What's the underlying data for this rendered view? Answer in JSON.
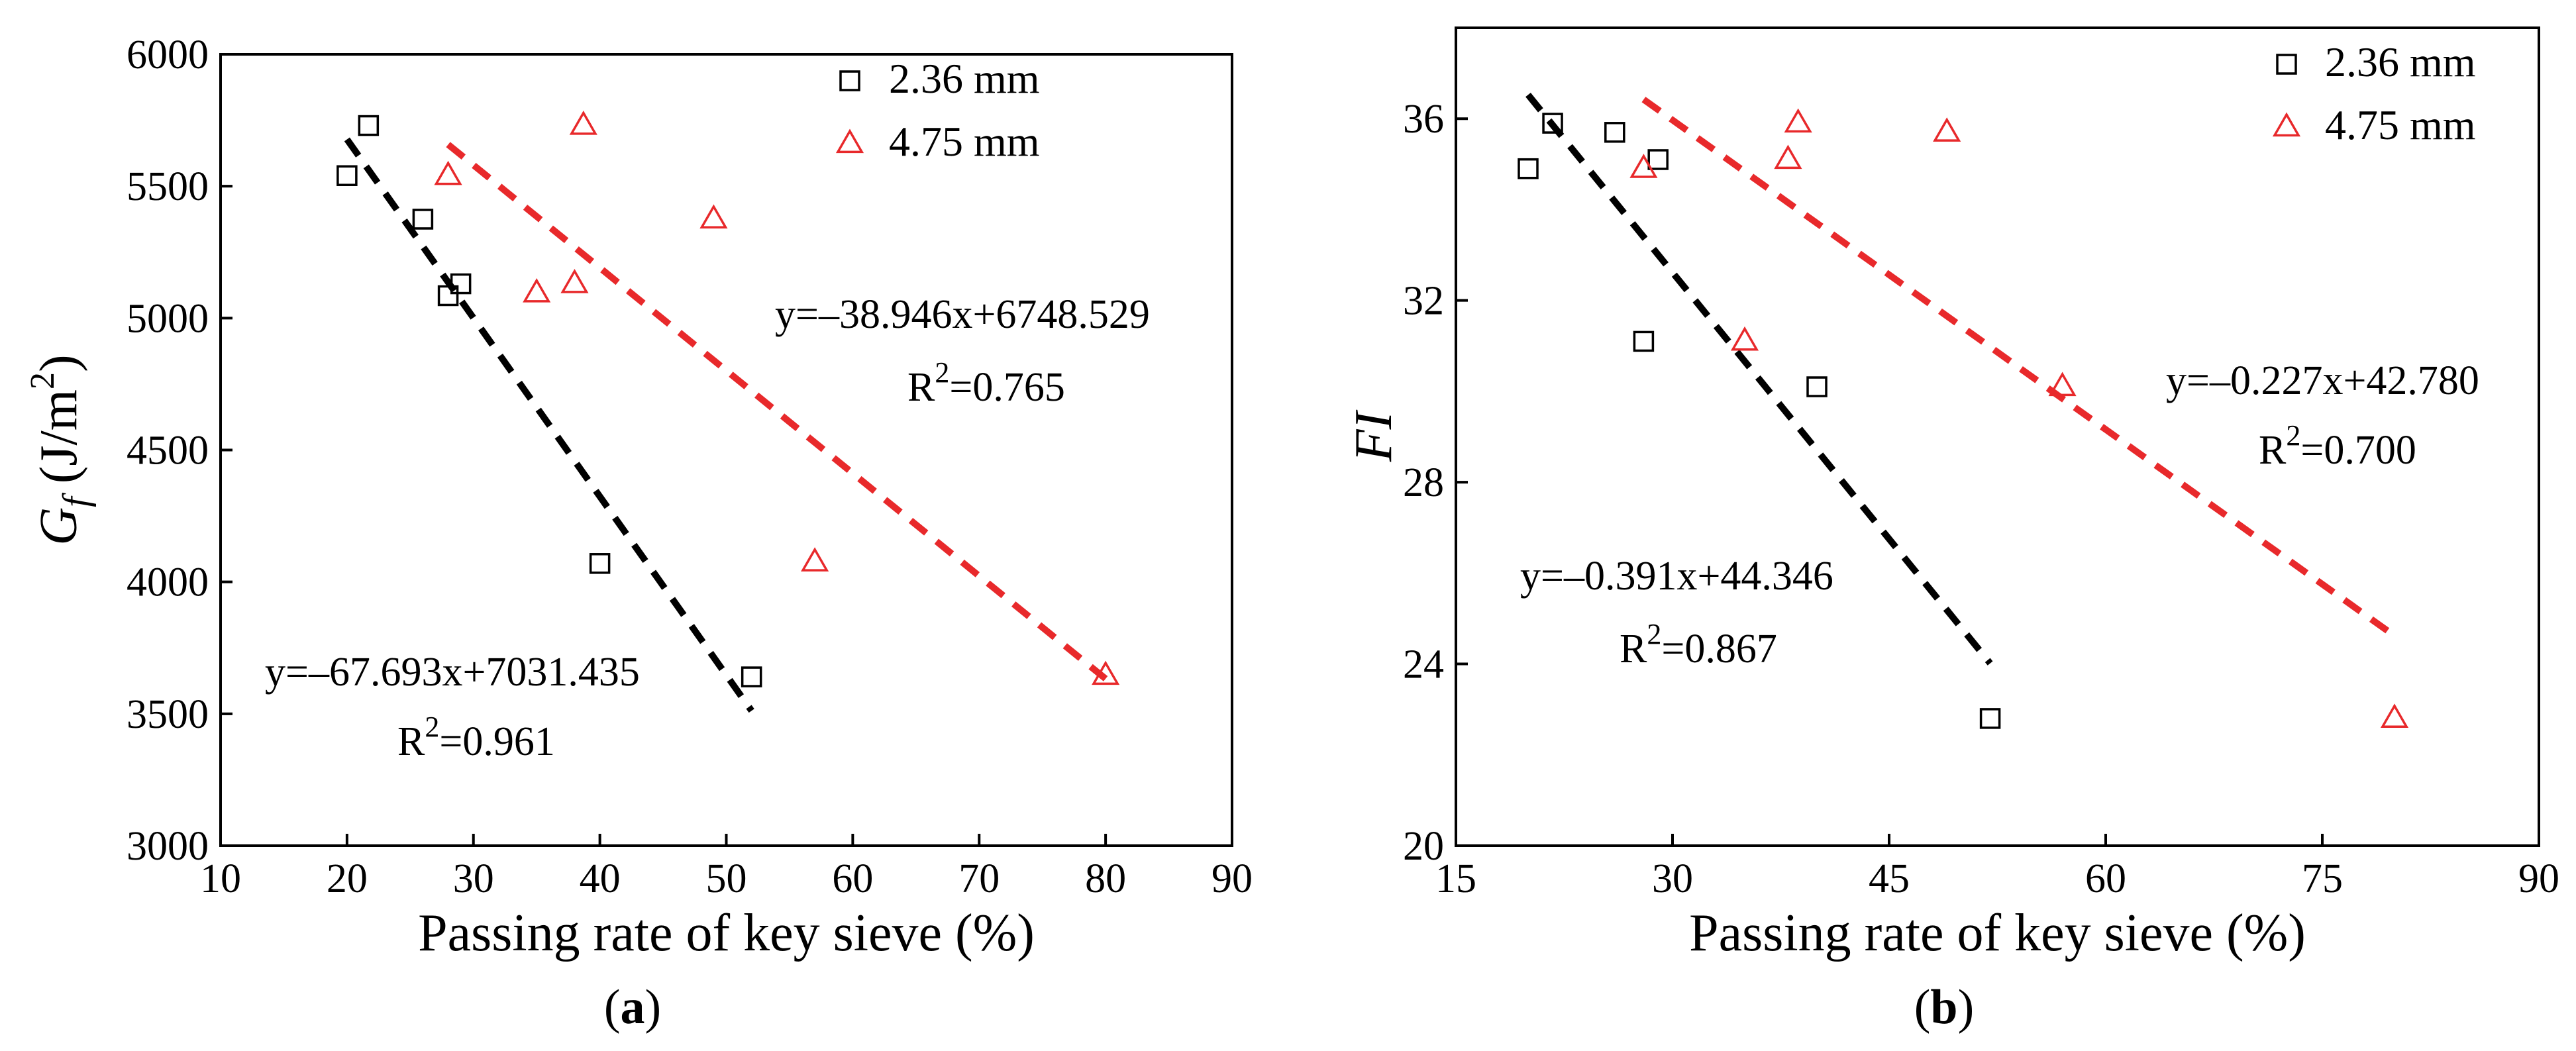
{
  "figure": {
    "colors": {
      "black": "#000000",
      "red": "#e8292b"
    },
    "panels": [
      {
        "id": "a",
        "label_open": "(",
        "label_letter": "a",
        "label_close": ")",
        "chart_type": "scatter",
        "xlabel": "Passing rate of key sieve (%)",
        "ylabel": {
          "main": "G",
          "sub": "f",
          "unit_pre": " (J/m",
          "unit_sup": "2",
          "unit_post": ")"
        },
        "xlim": [
          10,
          90
        ],
        "ylim": [
          3000,
          6000
        ],
        "xticks": [
          "10",
          "20",
          "30",
          "40",
          "50",
          "60",
          "70",
          "80",
          "90"
        ],
        "yticks": [
          "3000",
          "3500",
          "4000",
          "4500",
          "5000",
          "5500",
          "6000"
        ],
        "legend": [
          {
            "name": "2.36 mm",
            "marker": "square",
            "color": "#000000"
          },
          {
            "name": "4.75 mm",
            "marker": "triangle",
            "color": "#e8292b"
          }
        ],
        "series": [
          {
            "name": "2.36 mm",
            "marker": "square",
            "color": "#000000",
            "points": [
              [
                20,
                5540
              ],
              [
                21.7,
                5730
              ],
              [
                26,
                5375
              ],
              [
                28,
                5085
              ],
              [
                29,
                5130
              ],
              [
                40,
                4070
              ],
              [
                52,
                3640
              ]
            ],
            "fit": {
              "slope": -67.693,
              "intercept": 7031.435,
              "x_range": [
                20,
                52
              ]
            },
            "equation": "y=–67.693x+7031.435",
            "r2_prefix": "R",
            "r2_sup": "2",
            "r2_value": "=0.961"
          },
          {
            "name": "4.75 mm",
            "marker": "triangle",
            "color": "#e8292b",
            "points": [
              [
                28,
                5540
              ],
              [
                35,
                5095
              ],
              [
                38,
                5130
              ],
              [
                38.7,
                5730
              ],
              [
                49,
                5375
              ],
              [
                57,
                4075
              ],
              [
                80,
                3645
              ]
            ],
            "fit": {
              "slope": -38.946,
              "intercept": 6748.529,
              "x_range": [
                28,
                80
              ]
            },
            "equation": "y=–38.946x+6748.529",
            "r2_prefix": "R",
            "r2_sup": "2",
            "r2_value": "=0.765"
          }
        ]
      },
      {
        "id": "b",
        "label_open": "(",
        "label_letter": "b",
        "label_close": ")",
        "chart_type": "scatter",
        "xlabel": "Passing rate of key sieve (%)",
        "ylabel": {
          "main": "FI"
        },
        "xlim": [
          15,
          90
        ],
        "ylim": [
          20,
          38
        ],
        "xticks": [
          "15",
          "30",
          "45",
          "60",
          "75",
          "90"
        ],
        "yticks": [
          "20",
          "24",
          "28",
          "32",
          "36"
        ],
        "legend": [
          {
            "name": "2.36 mm",
            "marker": "square",
            "color": "#000000"
          },
          {
            "name": "4.75 mm",
            "marker": "triangle",
            "color": "#e8292b"
          }
        ],
        "series": [
          {
            "name": "2.36 mm",
            "marker": "square",
            "color": "#000000",
            "points": [
              [
                20,
                34.9
              ],
              [
                21.7,
                35.9
              ],
              [
                26,
                35.7
              ],
              [
                28,
                31.1
              ],
              [
                29,
                35.1
              ],
              [
                40,
                30.1
              ],
              [
                52,
                22.8
              ]
            ],
            "fit": {
              "slope": -0.391,
              "intercept": 44.346,
              "x_range": [
                20,
                52
              ]
            },
            "equation": "y=–0.391x+44.346",
            "r2_prefix": "R",
            "r2_sup": "2",
            "r2_value": "=0.867"
          },
          {
            "name": "4.75 mm",
            "marker": "triangle",
            "color": "#e8292b",
            "points": [
              [
                28,
                34.9
              ],
              [
                35,
                31.1
              ],
              [
                38,
                35.1
              ],
              [
                38.7,
                35.9
              ],
              [
                49,
                35.7
              ],
              [
                57,
                30.1
              ],
              [
                80,
                22.8
              ]
            ],
            "fit": {
              "slope": -0.227,
              "intercept": 42.78,
              "x_range": [
                28,
                80
              ]
            },
            "equation": "y=–0.227x+42.780",
            "r2_prefix": "R",
            "r2_sup": "2",
            "r2_value": "=0.700"
          }
        ]
      }
    ]
  },
  "chart_data": [
    {
      "type": "scatter",
      "title": "(a)",
      "xlabel": "Passing rate of key sieve (%)",
      "ylabel": "Gf (J/m2)",
      "xlim": [
        10,
        90
      ],
      "ylim": [
        3000,
        6000
      ],
      "series": [
        {
          "name": "2.36 mm",
          "x": [
            20,
            21.7,
            26,
            28,
            29,
            40,
            52
          ],
          "y": [
            5540,
            5730,
            5375,
            5085,
            5130,
            4070,
            3640
          ],
          "fit": "y=–67.693x+7031.435",
          "r2": 0.961
        },
        {
          "name": "4.75 mm",
          "x": [
            28,
            35,
            38,
            38.7,
            49,
            57,
            80
          ],
          "y": [
            5540,
            5095,
            5130,
            5730,
            5375,
            4075,
            3645
          ],
          "fit": "y=–38.946x+6748.529",
          "r2": 0.765
        }
      ]
    },
    {
      "type": "scatter",
      "title": "(b)",
      "xlabel": "Passing rate of key sieve (%)",
      "ylabel": "FI",
      "xlim": [
        15,
        90
      ],
      "ylim": [
        20,
        38
      ],
      "series": [
        {
          "name": "2.36 mm",
          "x": [
            20,
            21.7,
            26,
            28,
            29,
            40,
            52
          ],
          "y": [
            34.9,
            35.9,
            35.7,
            31.1,
            35.1,
            30.1,
            22.8
          ],
          "fit": "y=–0.391x+44.346",
          "r2": 0.867
        },
        {
          "name": "4.75 mm",
          "x": [
            28,
            35,
            38,
            38.7,
            49,
            57,
            80
          ],
          "y": [
            34.9,
            31.1,
            35.1,
            35.9,
            35.7,
            30.1,
            22.8
          ],
          "fit": "y=–0.227x+42.780",
          "r2": 0.7
        }
      ]
    }
  ]
}
